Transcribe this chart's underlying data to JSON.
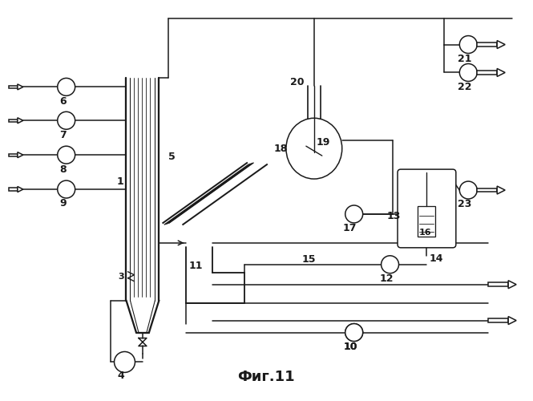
{
  "title": "Фиг.11",
  "bg_color": "#ffffff",
  "line_color": "#1a1a1a",
  "fig_width": 6.65,
  "fig_height": 5.0
}
